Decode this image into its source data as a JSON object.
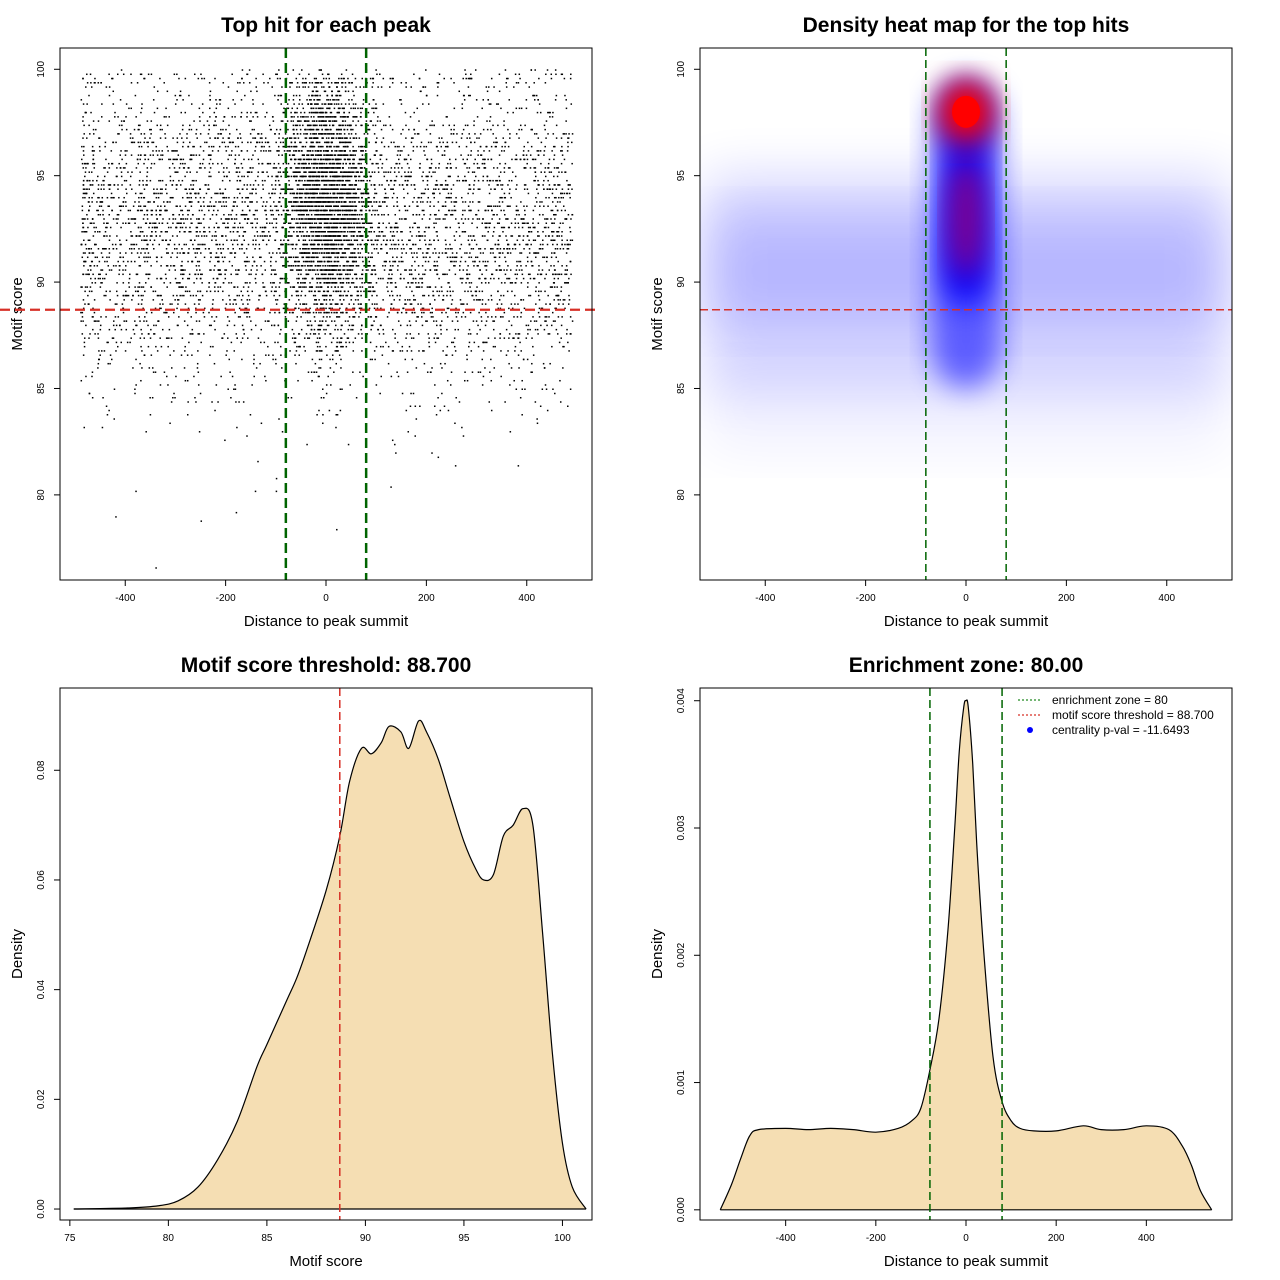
{
  "chart_data": [
    {
      "type": "scatter",
      "title": "Top hit for each peak",
      "xlabel": "Distance to peak summit",
      "ylabel": "Motif score",
      "xlim": [
        -530,
        530
      ],
      "ylim": [
        76,
        101
      ],
      "xticks": [
        "-400",
        "-200",
        "0",
        "200",
        "400"
      ],
      "xtick_values": [
        -400,
        -200,
        0,
        200,
        400
      ],
      "yticks": [
        "80",
        "85",
        "90",
        "95",
        "100"
      ],
      "ytick_values": [
        80,
        85,
        90,
        95,
        100
      ],
      "x_range_of_points": [
        -490,
        490
      ],
      "score_threshold": 88.7,
      "enrichment_zone": [
        -80,
        80
      ],
      "central_cluster": {
        "x_center": 0,
        "x_spread": 40,
        "y_center": 94,
        "y_range": [
          85,
          99.5
        ]
      },
      "background_y_range": [
        76.5,
        100
      ],
      "line_colors": {
        "threshold": "#d73027",
        "zone": "#006400"
      }
    },
    {
      "type": "heatmap",
      "title": "Density heat map for the top hits",
      "xlabel": "Distance to peak summit",
      "ylabel": "Motif score",
      "xlim": [
        -530,
        530
      ],
      "ylim": [
        76,
        101
      ],
      "xticks": [
        "-400",
        "-200",
        "0",
        "200",
        "400"
      ],
      "xtick_values": [
        -400,
        -200,
        0,
        200,
        400
      ],
      "yticks": [
        "80",
        "85",
        "90",
        "95",
        "100"
      ],
      "yticks_values": [
        80,
        85,
        90,
        95,
        100
      ],
      "hotspot": {
        "x": 0,
        "y": 98
      },
      "score_threshold": 88.7,
      "enrichment_zone": [
        -80,
        80
      ],
      "colors": {
        "low": "#ffffff",
        "mid": "#0000ff",
        "high": "#ff0000"
      }
    },
    {
      "type": "area",
      "title": "Motif score threshold: 88.700",
      "xlabel": "Motif score",
      "ylabel": "Density",
      "xlim": [
        74.5,
        101.5
      ],
      "ylim": [
        -0.002,
        0.095
      ],
      "xticks": [
        "75",
        "80",
        "85",
        "90",
        "95",
        "100"
      ],
      "xtick_values": [
        75,
        80,
        85,
        90,
        95,
        100
      ],
      "yticks": [
        "0.00",
        "0.02",
        "0.04",
        "0.06",
        "0.08"
      ],
      "ytick_values": [
        0,
        0.02,
        0.04,
        0.06,
        0.08
      ],
      "x": [
        75.2,
        78,
        79.5,
        80.5,
        81.5,
        82.5,
        83.5,
        84.5,
        85,
        86,
        86.5,
        87,
        88,
        88.7,
        89.2,
        89.8,
        90.3,
        90.8,
        91.2,
        91.8,
        92.2,
        92.7,
        93.1,
        93.7,
        94.3,
        95,
        95.6,
        96,
        96.5,
        97,
        97.5,
        98,
        98.5,
        99,
        99.5,
        100,
        100.5,
        101.2
      ],
      "y": [
        0.0,
        0.0002,
        0.0006,
        0.0015,
        0.004,
        0.009,
        0.016,
        0.026,
        0.03,
        0.038,
        0.042,
        0.047,
        0.058,
        0.068,
        0.078,
        0.084,
        0.083,
        0.085,
        0.088,
        0.087,
        0.084,
        0.089,
        0.087,
        0.082,
        0.075,
        0.067,
        0.062,
        0.06,
        0.061,
        0.068,
        0.07,
        0.073,
        0.07,
        0.05,
        0.028,
        0.012,
        0.004,
        0.0
      ],
      "fill_color": "#f5deb3",
      "vline": 88.7,
      "vline_color": "#d73027"
    },
    {
      "type": "area",
      "title": "Enrichment zone: 80.00",
      "xlabel": "Distance to peak summit",
      "ylabel": "Density",
      "xlim": [
        -590,
        590
      ],
      "ylim": [
        -8e-05,
        0.0041
      ],
      "xticks": [
        "-400",
        "-200",
        "0",
        "200",
        "400"
      ],
      "xtick_values": [
        -400,
        -200,
        0,
        200,
        400
      ],
      "yticks": [
        "0.000",
        "0.001",
        "0.002",
        "0.003",
        "0.004"
      ],
      "ytick_values": [
        0,
        0.001,
        0.002,
        0.003,
        0.004
      ],
      "x": [
        -545,
        -520,
        -500,
        -480,
        -460,
        -400,
        -350,
        -300,
        -250,
        -200,
        -150,
        -120,
        -100,
        -80,
        -60,
        -40,
        -25,
        -15,
        -5,
        0,
        5,
        15,
        25,
        40,
        60,
        80,
        100,
        120,
        150,
        200,
        260,
        300,
        350,
        400,
        450,
        480,
        500,
        520,
        545
      ],
      "y": [
        0.0,
        0.0002,
        0.0004,
        0.00058,
        0.00063,
        0.00064,
        0.00063,
        0.00064,
        0.00063,
        0.00061,
        0.00064,
        0.0007,
        0.0008,
        0.0011,
        0.0015,
        0.0022,
        0.003,
        0.0036,
        0.00395,
        0.004,
        0.00395,
        0.0035,
        0.0028,
        0.002,
        0.0012,
        0.00085,
        0.0007,
        0.00064,
        0.00062,
        0.00062,
        0.00066,
        0.00063,
        0.00063,
        0.00066,
        0.00063,
        0.0005,
        0.00035,
        0.00015,
        0.0
      ],
      "fill_color": "#f5deb3",
      "vlines": [
        -80,
        80
      ],
      "vline_color": "#006400",
      "legend": [
        {
          "label": "enrichment zone = 80",
          "color": "#228b22",
          "kind": "dotted"
        },
        {
          "label": "motif score threshold = 88.700",
          "color": "#d73027",
          "kind": "dotted"
        },
        {
          "label": "centrality p-val = -11.6493",
          "color": "#0000ff",
          "kind": "point"
        }
      ]
    }
  ]
}
